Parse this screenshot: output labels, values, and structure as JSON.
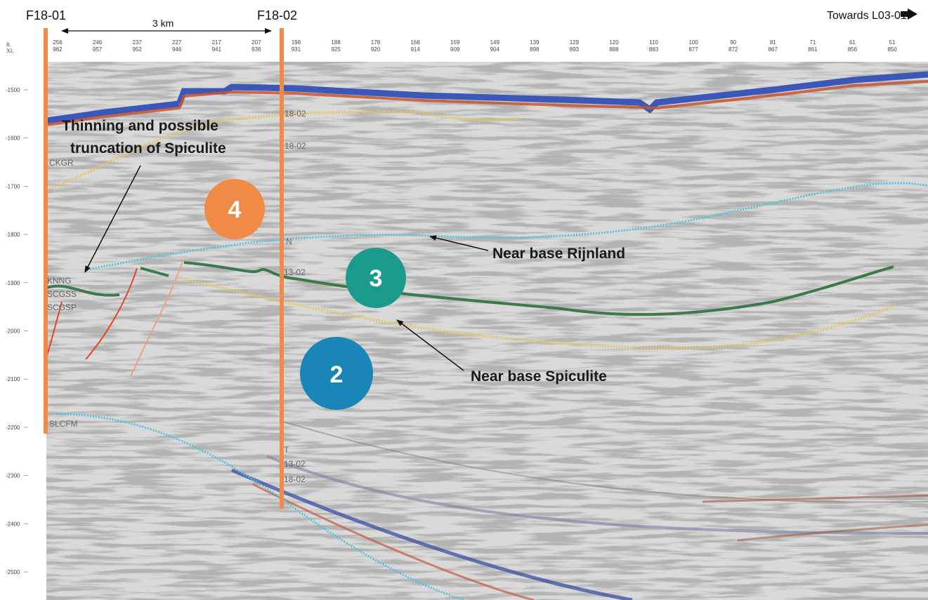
{
  "header": {
    "well_left": "F18-01",
    "well_right": "F18-02",
    "scale_label": "3 km",
    "towards_label": "Towards L03-01"
  },
  "axis": {
    "unit_top": "ft.",
    "unit_bottom": "XL",
    "inline_labels": [
      "256",
      "246",
      "237",
      "227",
      "217",
      "207",
      "198",
      "188",
      "178",
      "168",
      "159",
      "149",
      "139",
      "129",
      "120",
      "110",
      "100",
      "90",
      "81",
      "71",
      "61",
      "51"
    ],
    "xline_labels": [
      "962",
      "957",
      "952",
      "946",
      "941",
      "936",
      "931",
      "925",
      "920",
      "914",
      "909",
      "904",
      "898",
      "893",
      "888",
      "883",
      "877",
      "872",
      "867",
      "861",
      "856",
      "850"
    ],
    "depth_labels": [
      "-1500",
      "-1600",
      "-1700",
      "-1800",
      "-1900",
      "-2000",
      "-2100",
      "-2200",
      "-2300",
      "-2400",
      "-2500"
    ]
  },
  "horizon_labels": {
    "ckgr": "CKGR",
    "knng": "KNNG",
    "scgss": "SCGSS",
    "scgsp": "SCGSP",
    "slcfm": "SLCFM",
    "n": "N",
    "t": "T",
    "well_tag_1": "18-02",
    "well_tag_2": "18-02",
    "well_tag_3": "13-02",
    "well_tag_4": "13-02",
    "well_tag_5": "18-02"
  },
  "annotations": {
    "thinning_line1": "Thinning and possible",
    "thinning_line2": "truncation of Spiculite",
    "near_base_rijnland": "Near base Rijnland",
    "near_base_spiculite": "Near base Spiculite"
  },
  "units": {
    "unit_4": "4",
    "unit_3": "3",
    "unit_2": "2"
  },
  "colors": {
    "well_line": "#f08a47",
    "unit_4": "#f08a47",
    "unit_3": "#1a9a8c",
    "unit_2": "#1a86b8",
    "green_horizon": "#3d7a4a",
    "cyan_horizon": "#4fc3e0",
    "yellow_horizon": "#e8c46a",
    "fault_red": "#e0452a"
  }
}
